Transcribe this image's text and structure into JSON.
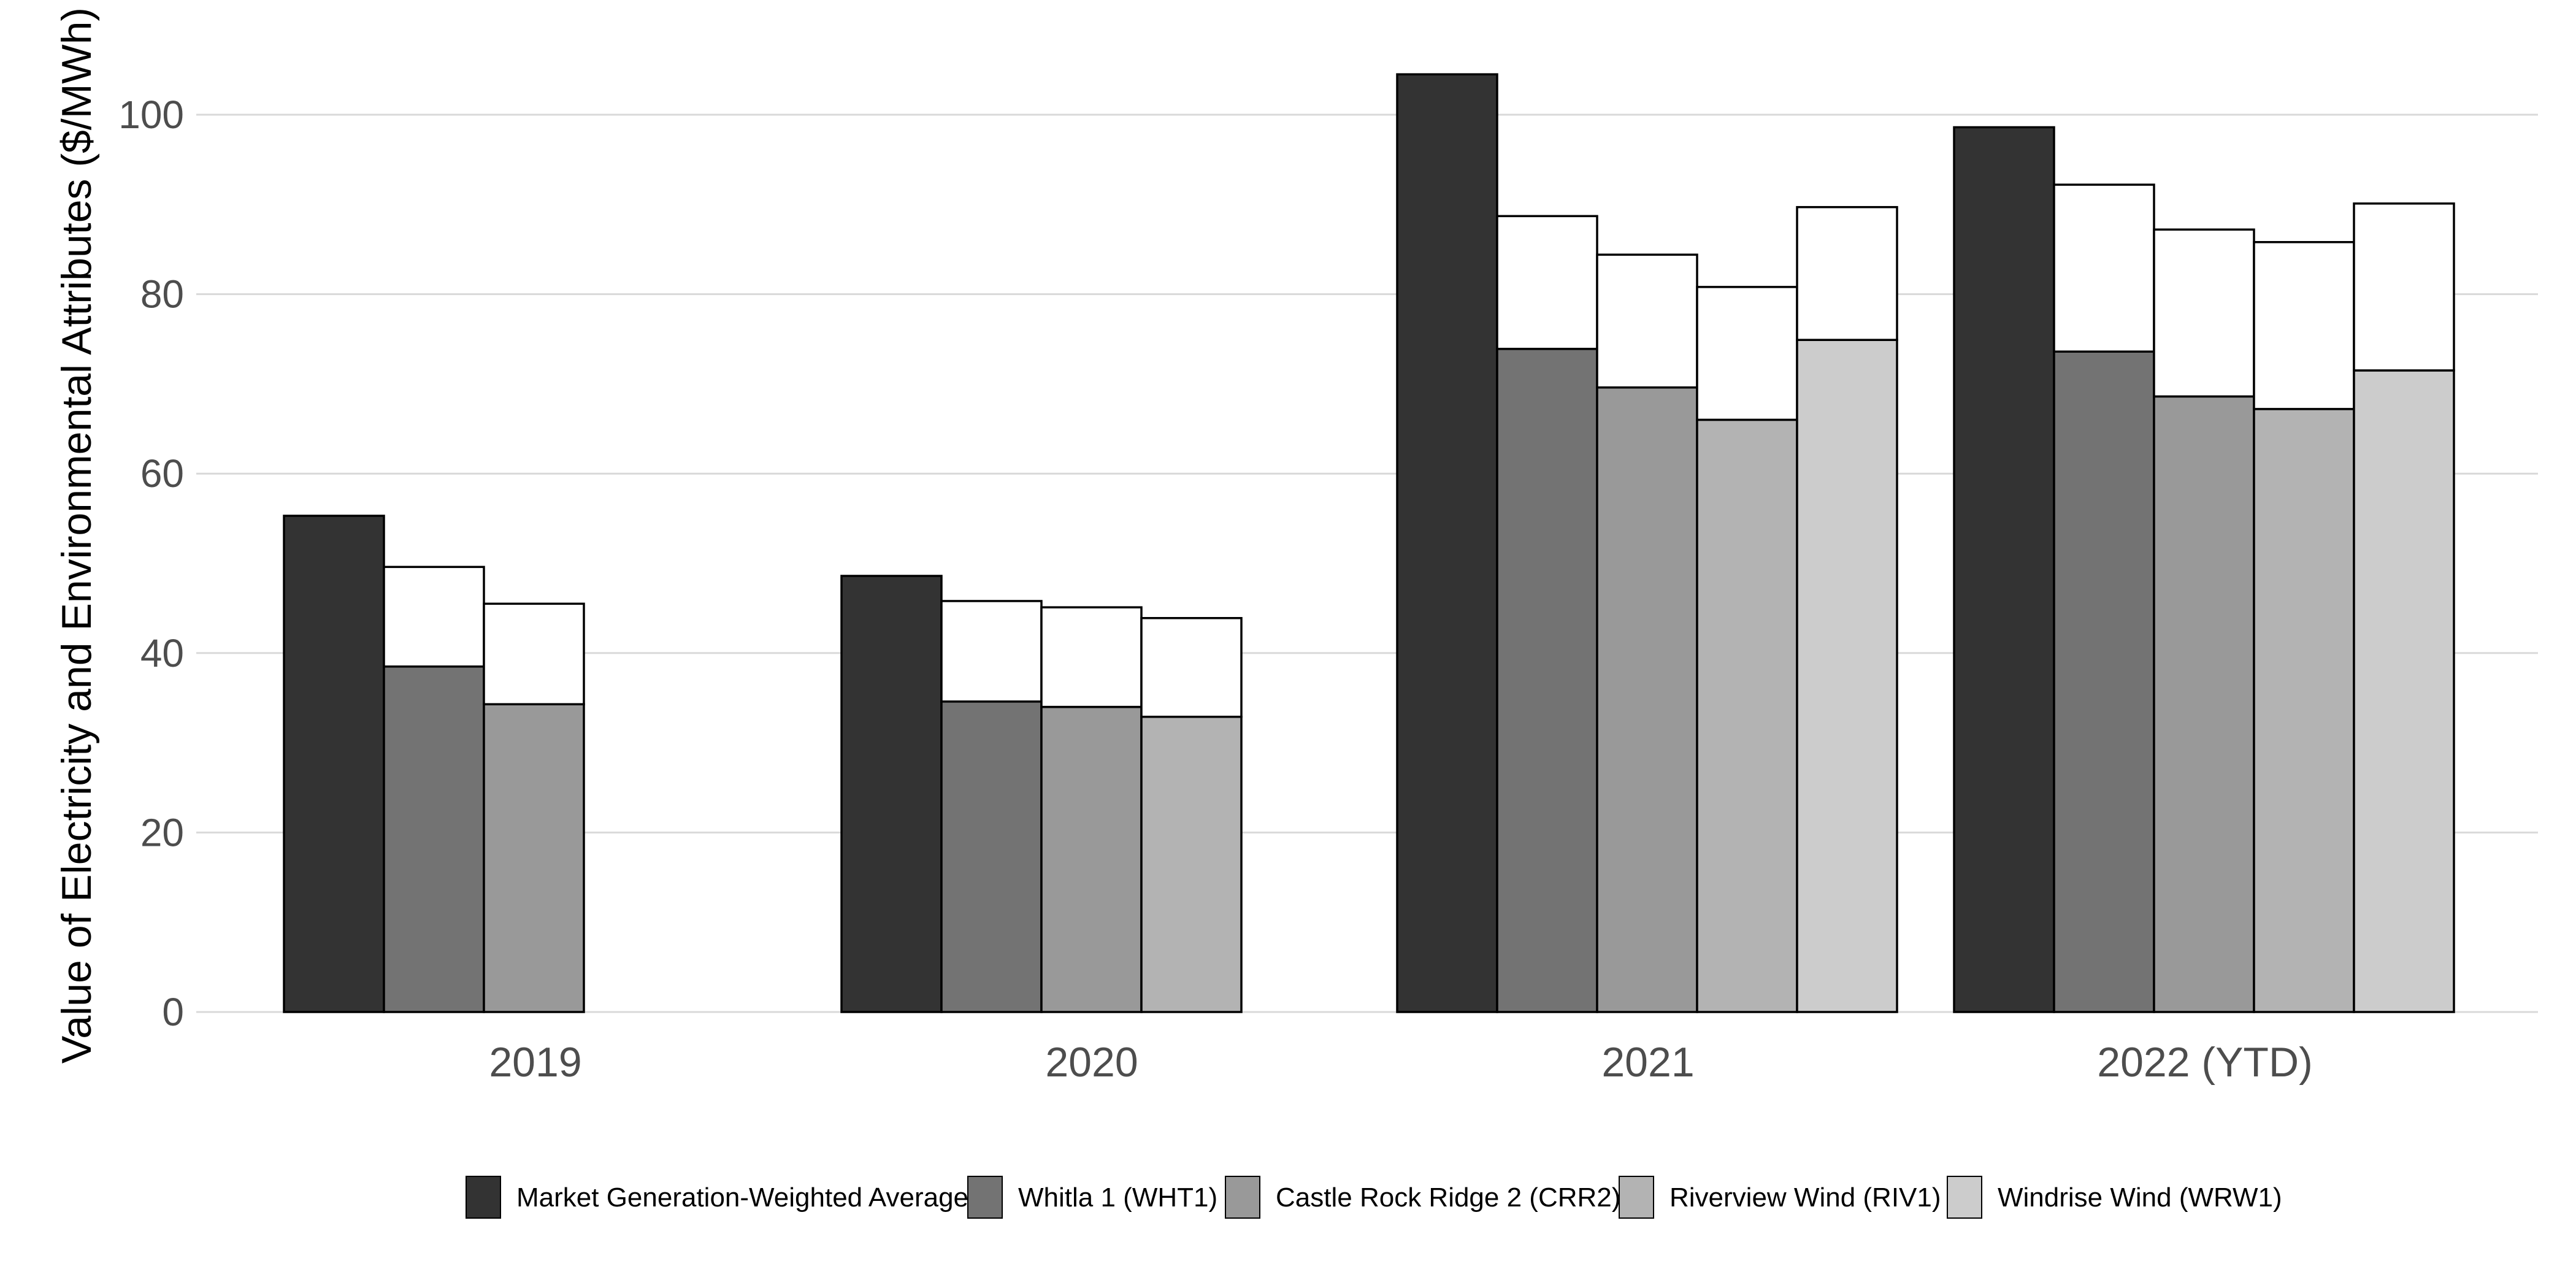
{
  "chart_data": {
    "type": "bar",
    "title": "",
    "xlabel": "",
    "ylabel": "Value of Electricity and Environmental Attributes ($/MWh)",
    "ylim": [
      0,
      108
    ],
    "yticks": [
      0,
      20,
      40,
      60,
      80,
      100
    ],
    "grid": "horizontal major",
    "legend_position": "bottom",
    "categories": [
      "2019",
      "2020",
      "2021",
      "2022 (YTD)"
    ],
    "series": [
      {
        "name": "Market Generation-Weighted Average",
        "color": "#333333",
        "values": [
          55.3,
          48.6,
          104.5,
          98.6
        ],
        "env_attributes": [
          0,
          0,
          0,
          0
        ]
      },
      {
        "name": "Whitla 1 (WHT1)",
        "color": "#737373",
        "values": [
          38.5,
          34.6,
          73.9,
          73.6
        ],
        "env_attributes": [
          11.1,
          11.2,
          14.8,
          18.6
        ]
      },
      {
        "name": "Castle Rock Ridge 2 (CRR2)",
        "color": "#999999",
        "values": [
          34.3,
          34.0,
          69.6,
          68.6
        ],
        "env_attributes": [
          11.2,
          11.1,
          14.8,
          18.6
        ]
      },
      {
        "name": "Riverview Wind (RIV1)",
        "color": "#b3b3b3",
        "values": [
          null,
          32.9,
          66.0,
          67.2
        ],
        "env_attributes": [
          null,
          11.0,
          14.8,
          18.6
        ]
      },
      {
        "name": "Windrise Wind (WRW1)",
        "color": "#cccccc",
        "values": [
          null,
          null,
          74.9,
          71.5
        ],
        "env_attributes": [
          null,
          null,
          14.8,
          18.6
        ]
      }
    ]
  }
}
